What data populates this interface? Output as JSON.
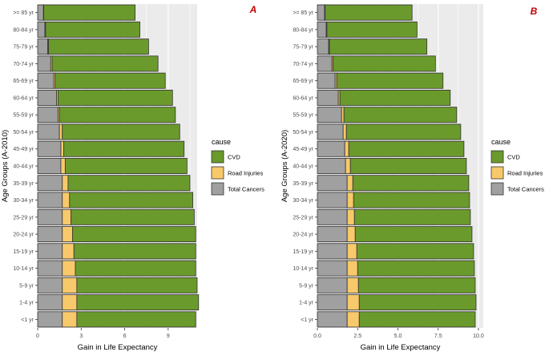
{
  "chart_data": [
    {
      "type": "bar",
      "orientation": "horizontal",
      "stacked": true,
      "panel_label": "A",
      "ylabel": "Age Groups (A-2010)",
      "xlabel": "Gain in Life Expectancy",
      "xlim": [
        0,
        11
      ],
      "xticks": [
        0,
        3,
        6,
        9
      ],
      "xtick_labels": [
        "0",
        "3",
        "6",
        "9"
      ],
      "grid": true,
      "categories": [
        "<1 yr",
        "1-4 yr",
        "5-9 yr",
        "10-14 yr",
        "15-19 yr",
        "20-24 yr",
        "25-29 yr",
        "30-34 yr",
        "35-39 yr",
        "40-44 yr",
        "45-49 yr",
        "50-54 yr",
        "55-59 yr",
        "60-64 yr",
        "65-69 yr",
        "70-74 yr",
        "75-79 yr",
        "80-84 yr",
        ">= 85 yr"
      ],
      "series": [
        {
          "name": "Total Cancers",
          "values": [
            1.7,
            1.7,
            1.7,
            1.7,
            1.7,
            1.7,
            1.7,
            1.7,
            1.7,
            1.6,
            1.6,
            1.5,
            1.4,
            1.3,
            1.1,
            0.9,
            0.7,
            0.5,
            0.4
          ]
        },
        {
          "name": "Road Injuries",
          "values": [
            1.0,
            1.0,
            1.0,
            0.9,
            0.8,
            0.7,
            0.6,
            0.5,
            0.4,
            0.3,
            0.2,
            0.2,
            0.1,
            0.1,
            0.1,
            0.1,
            0.05,
            0.05,
            0.02
          ]
        },
        {
          "name": "CVD",
          "values": [
            8.2,
            8.4,
            8.3,
            8.3,
            8.4,
            8.5,
            8.5,
            8.5,
            8.4,
            8.4,
            8.3,
            8.1,
            8.0,
            7.9,
            7.6,
            7.3,
            6.9,
            6.5,
            6.3
          ]
        }
      ]
    },
    {
      "type": "bar",
      "orientation": "horizontal",
      "stacked": true,
      "panel_label": "B",
      "ylabel": "Age Groups (A-2020)",
      "xlabel": "Gain in Life Expectancy",
      "xlim": [
        0,
        10.3
      ],
      "xticks": [
        0,
        2.5,
        5,
        7.5,
        10
      ],
      "xtick_labels": [
        "0.0",
        "2.5",
        "5.0",
        "7.5",
        "10.0"
      ],
      "grid": true,
      "categories": [
        "<1 yr",
        "1-4 yr",
        "5-9 yr",
        "10-14 yr",
        "15-19 yr",
        "20-24 yr",
        "25-29 yr",
        "30-34 yr",
        "35-39 yr",
        "40-44 yr",
        "45-49 yr",
        "50-54 yr",
        "55-59 yr",
        "60-64 yr",
        "65-69 yr",
        "70-74 yr",
        "75-79 yr",
        "80-84 yr",
        ">= 85 yr"
      ],
      "series": [
        {
          "name": "Total Cancers",
          "values": [
            1.85,
            1.85,
            1.85,
            1.85,
            1.85,
            1.85,
            1.85,
            1.85,
            1.85,
            1.75,
            1.7,
            1.6,
            1.5,
            1.3,
            1.1,
            0.9,
            0.7,
            0.55,
            0.45
          ]
        },
        {
          "name": "Road Injuries",
          "values": [
            0.75,
            0.75,
            0.7,
            0.65,
            0.6,
            0.5,
            0.45,
            0.4,
            0.35,
            0.3,
            0.25,
            0.2,
            0.15,
            0.1,
            0.1,
            0.08,
            0.05,
            0.04,
            0.03
          ]
        },
        {
          "name": "CVD",
          "values": [
            7.2,
            7.25,
            7.25,
            7.25,
            7.25,
            7.25,
            7.2,
            7.2,
            7.2,
            7.2,
            7.15,
            7.1,
            7.0,
            6.85,
            6.6,
            6.35,
            6.05,
            5.6,
            5.4
          ]
        }
      ]
    }
  ],
  "legend": {
    "title": "cause",
    "entries": [
      "CVD",
      "Road Injuries",
      "Total Cancers"
    ],
    "placement": "right"
  },
  "colors": {
    "CVD": "#6a9a2c",
    "Road Injuries": "#f8c96a",
    "Total Cancers": "#a0a0a0",
    "panel_background": "#ebebeb",
    "gridline": "#ffffff",
    "panel_label": "#c00000"
  }
}
